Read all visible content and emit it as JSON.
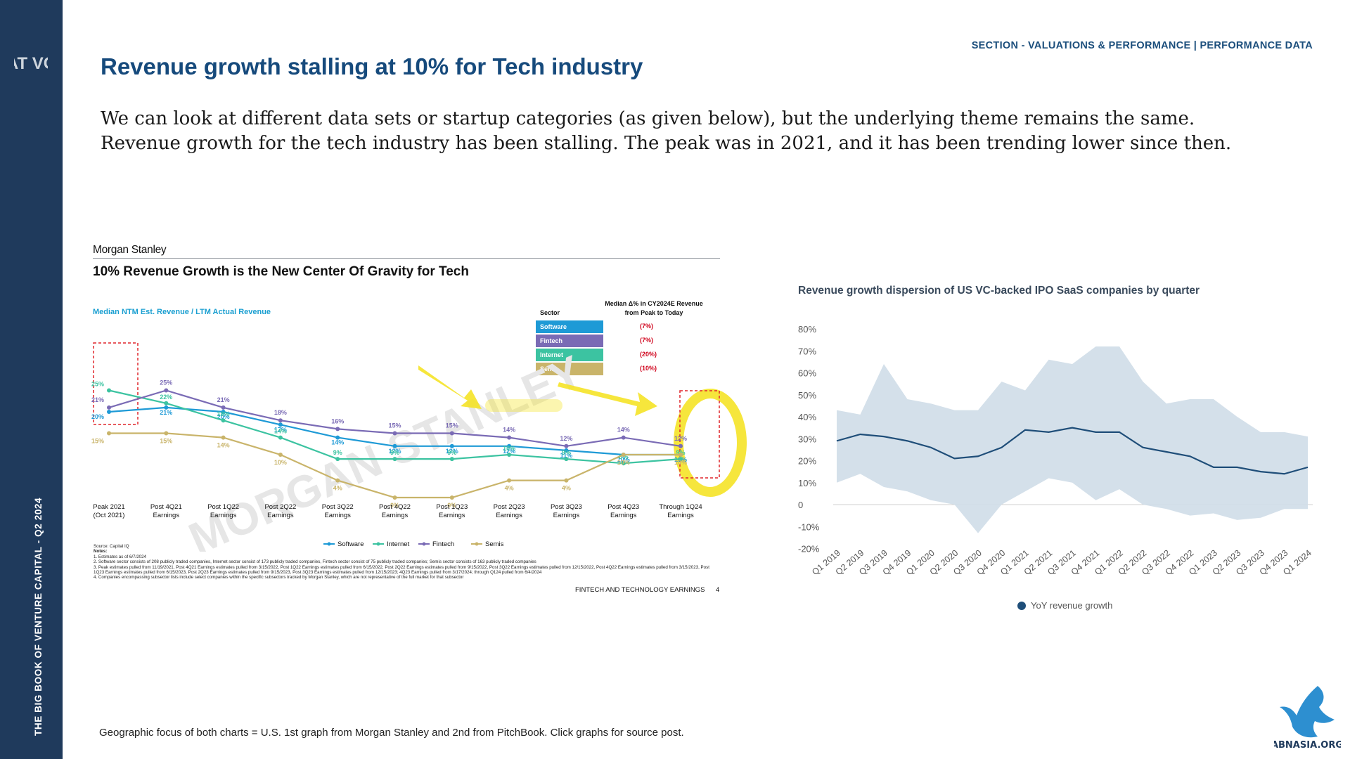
{
  "sidebar": {
    "logo_text": "AT VC",
    "vertical_text": "THE BIG BOOK OF VENTURE CAPITAL - Q2 2024"
  },
  "header": {
    "section_label": "SECTION - VALUATIONS & PERFORMANCE | PERFORMANCE DATA"
  },
  "title": "Revenue growth stalling at 10% for Tech industry",
  "intro": "We can look at different data sets or startup categories (as given below), but the underlying theme remains the same. Revenue growth for the tech industry has been stalling. The peak was in 2021, and it has been trending lower since then.",
  "footer_note": "Geographic focus of both charts = U.S. 1st graph from Morgan Stanley and 2nd from PitchBook. Click graphs for source post.",
  "corner_logo_text": "ABNASIA.ORG",
  "colors": {
    "sidebar": "#1f3a5c",
    "title": "#164a7c",
    "software": "#1e9ad6",
    "internet": "#3cc3a1",
    "fintech": "#7a6bb5",
    "semis": "#c9b46a",
    "highlight": "#f4e21a",
    "pb_line": "#1f4e79",
    "pb_band": "#cfdde8"
  },
  "chart_data": [
    {
      "type": "line",
      "brand": "Morgan Stanley",
      "title": "10% Revenue Growth is the New Center Of Gravity for Tech",
      "subtitle": "Median NTM Est. Revenue / LTM Actual Revenue",
      "watermark": "MORGAN STANLEY",
      "categories": [
        [
          "Peak 2021",
          "(Oct 2021)"
        ],
        [
          "Post 4Q21",
          "Earnings"
        ],
        [
          "Post 1Q22",
          "Earnings"
        ],
        [
          "Post 2Q22",
          "Earnings"
        ],
        [
          "Post 3Q22",
          "Earnings"
        ],
        [
          "Post 4Q22",
          "Earnings"
        ],
        [
          "Post 1Q23",
          "Earnings"
        ],
        [
          "Post 2Q23",
          "Earnings"
        ],
        [
          "Post 3Q23",
          "Earnings"
        ],
        [
          "Post 4Q23",
          "Earnings"
        ],
        [
          "Through 1Q24",
          "Earnings"
        ]
      ],
      "series": [
        {
          "name": "Software",
          "color": "#1e9ad6",
          "values": [
            20,
            21,
            20,
            17,
            14,
            12,
            12,
            12,
            11,
            10,
            10
          ]
        },
        {
          "name": "Internet",
          "color": "#3cc3a1",
          "values": [
            25,
            22,
            18,
            14,
            9,
            9,
            9,
            10,
            9,
            8,
            9
          ]
        },
        {
          "name": "Fintech",
          "color": "#7a6bb5",
          "values": [
            21,
            25,
            21,
            18,
            16,
            15,
            15,
            14,
            12,
            14,
            12
          ]
        },
        {
          "name": "Semis",
          "color": "#c9b46a",
          "values": [
            15,
            15,
            14,
            10,
            4,
            0,
            0,
            4,
            4,
            10,
            10
          ]
        }
      ],
      "table": {
        "header_sector": "Sector",
        "header_change": "Median Δ% in CY2024E Revenue from Peak to Today",
        "rows": [
          {
            "sector": "Software",
            "change": "(7%)",
            "color": "#1e9ad6"
          },
          {
            "sector": "Fintech",
            "change": "(7%)",
            "color": "#7a6bb5"
          },
          {
            "sector": "Internet",
            "change": "(20%)",
            "color": "#3cc3a1"
          },
          {
            "sector": "Semis",
            "change": "(10%)",
            "color": "#c9b46a"
          }
        ]
      },
      "source": "Source: Capital IQ",
      "notes_title": "Notes:",
      "notes": [
        "1. Estimates as of 6/7/2024",
        "2. Software sector consists of 208 publicly traded companies, Internet sector consist of 173 publicly traded companies, Fintech sector consist of 75 publicly traded companies; Semis sector consists of 163 publicly traded companies",
        "3. Peak estimates pulled from 11/19/2021, Post 4Q21 Earnings estimates pulled from 3/15/2022, Post 1Q22 Earnings estimates pulled from 6/15/2022, Post 2Q22 Earnings estimates pulled from 9/15/2022, Post 3Q22 Earnings estimates pulled from 12/15/2022, Post 4Q22 Earnings estimates pulled from 3/15/2023, Post 1Q23 Earnings estimates pulled from 6/15/2023, Post 2Q23 Earnings estimates pulled from 9/15/2023, Post 3Q23 Earnings estimates pulled from 12/15/2023; 4Q23 Earnings pulled from 3/17/2024; through Q124 pulled from 6/4/2024",
        "4. Companies encompassing subsector lists include select companies within the specific subsectors tracked by Morgan Stanley, which are not representative of the full market for that subsector"
      ],
      "footer": "FINTECH AND TECHNOLOGY EARNINGS",
      "page_number": "4"
    },
    {
      "type": "area",
      "title": "Revenue growth dispersion of US VC-backed IPO SaaS companies by quarter",
      "categories": [
        "Q1 2019",
        "Q2 2019",
        "Q3 2019",
        "Q4 2019",
        "Q1 2020",
        "Q2 2020",
        "Q3 2020",
        "Q4 2020",
        "Q1 2021",
        "Q2 2021",
        "Q3 2021",
        "Q4 2021",
        "Q1 2022",
        "Q2 2022",
        "Q3 2022",
        "Q4 2022",
        "Q1 2023",
        "Q2 2023",
        "Q3 2023",
        "Q4 2023",
        "Q1 2024"
      ],
      "yticks": [
        "80%",
        "70%",
        "60%",
        "50%",
        "40%",
        "30%",
        "20%",
        "10%",
        "0",
        "-10%",
        "-20%"
      ],
      "ylim": [
        -20,
        80
      ],
      "series": [
        {
          "name": "YoY revenue growth",
          "color": "#1f4e79",
          "values": [
            29,
            32,
            31,
            29,
            26,
            21,
            22,
            26,
            34,
            33,
            35,
            33,
            33,
            26,
            24,
            22,
            17,
            17,
            15,
            14,
            17
          ]
        }
      ],
      "band_upper": [
        43,
        41,
        64,
        48,
        46,
        43,
        43,
        56,
        52,
        66,
        64,
        72,
        72,
        56,
        46,
        48,
        48,
        40,
        33,
        33,
        31
      ],
      "band_lower": [
        10,
        14,
        8,
        6,
        2,
        0,
        -13,
        0,
        6,
        12,
        10,
        2,
        7,
        0,
        -2,
        -5,
        -4,
        -7,
        -6,
        -2,
        -2
      ]
    }
  ]
}
